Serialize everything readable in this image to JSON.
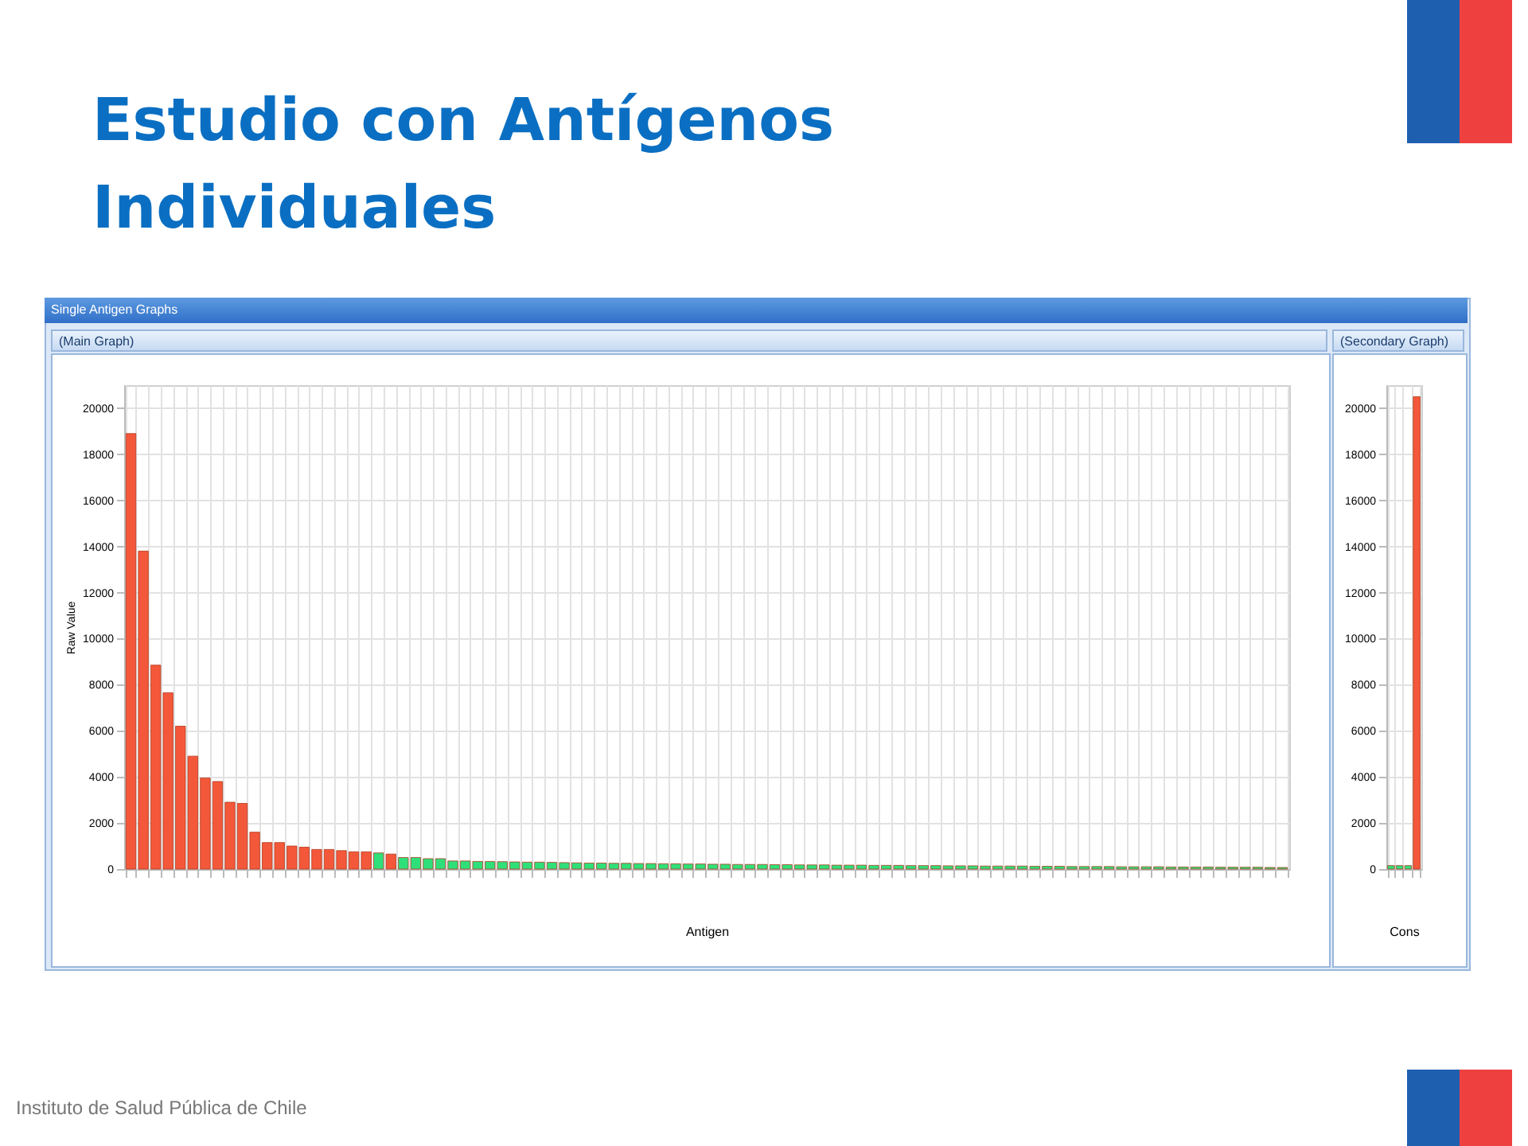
{
  "chart_data": [
    {
      "type": "bar",
      "title": "Estudio con Antígenos Individuales",
      "subtitle": "(Main Graph)",
      "annotations": [
        "Single Antigen Graphs",
        "Instituto de Salud Pública de Chile"
      ],
      "xlabel": "Antigen",
      "ylabel": "Raw Value",
      "categories": [
        null,
        null,
        null,
        null,
        null,
        null,
        null,
        null,
        null,
        null,
        null,
        null,
        null,
        null,
        null,
        null,
        null,
        null,
        null,
        null,
        null,
        null,
        null,
        null,
        null,
        null,
        null,
        null,
        null,
        null,
        null,
        null,
        null,
        null,
        null,
        null,
        null,
        null,
        null,
        null,
        null,
        null,
        null,
        null,
        null,
        null,
        null,
        null,
        null,
        null,
        null,
        null,
        null,
        null,
        null,
        null,
        null,
        null,
        null,
        null,
        null,
        null,
        null,
        null,
        null,
        null,
        null,
        null,
        null,
        null,
        null,
        null,
        null,
        null,
        null,
        null,
        null,
        null,
        null,
        null,
        null,
        null,
        null,
        null,
        null,
        null,
        null,
        null,
        null,
        null,
        null,
        null,
        null,
        null
      ],
      "values": [
        18900,
        13800,
        8850,
        7650,
        6200,
        4900,
        3950,
        3800,
        2900,
        2850,
        1600,
        1150,
        1150,
        1000,
        950,
        850,
        850,
        800,
        750,
        750,
        700,
        650,
        500,
        500,
        450,
        450,
        350,
        350,
        330,
        330,
        320,
        310,
        300,
        300,
        290,
        280,
        270,
        260,
        260,
        250,
        250,
        240,
        240,
        230,
        230,
        220,
        220,
        210,
        210,
        200,
        200,
        200,
        190,
        190,
        180,
        180,
        180,
        170,
        170,
        170,
        160,
        160,
        160,
        150,
        150,
        150,
        140,
        140,
        140,
        130,
        130,
        130,
        130,
        120,
        120,
        120,
        110,
        110,
        110,
        110,
        100,
        100,
        100,
        100,
        90,
        90,
        90,
        90,
        80,
        80,
        80,
        80,
        70,
        70
      ],
      "colors": [
        "#f4583a",
        "#f4583a",
        "#f4583a",
        "#f4583a",
        "#f4583a",
        "#f4583a",
        "#f4583a",
        "#f4583a",
        "#f4583a",
        "#f4583a",
        "#f4583a",
        "#f4583a",
        "#f4583a",
        "#f4583a",
        "#f4583a",
        "#f4583a",
        "#f4583a",
        "#f4583a",
        "#f4583a",
        "#f4583a",
        "#2fe07a",
        "#f4583a",
        "#2fe07a",
        "#2fe07a",
        "#2fe07a",
        "#2fe07a",
        "#2fe07a",
        "#2fe07a",
        "#2fe07a",
        "#2fe07a",
        "#2fe07a",
        "#2fe07a",
        "#2fe07a",
        "#2fe07a",
        "#2fe07a",
        "#2fe07a",
        "#2fe07a",
        "#2fe07a",
        "#2fe07a",
        "#2fe07a",
        "#2fe07a",
        "#2fe07a",
        "#2fe07a",
        "#2fe07a",
        "#2fe07a",
        "#2fe07a",
        "#2fe07a",
        "#2fe07a",
        "#2fe07a",
        "#2fe07a",
        "#2fe07a",
        "#2fe07a",
        "#2fe07a",
        "#2fe07a",
        "#2fe07a",
        "#2fe07a",
        "#2fe07a",
        "#2fe07a",
        "#2fe07a",
        "#2fe07a",
        "#2fe07a",
        "#2fe07a",
        "#2fe07a",
        "#2fe07a",
        "#2fe07a",
        "#2fe07a",
        "#2fe07a",
        "#2fe07a",
        "#2fe07a",
        "#2fe07a",
        "#2fe07a",
        "#2fe07a",
        "#2fe07a",
        "#2fe07a",
        "#2fe07a",
        "#2fe07a",
        "#2fe07a",
        "#2fe07a",
        "#2fe07a",
        "#2fe07a",
        "#2fe07a",
        "#2fe07a",
        "#2fe07a",
        "#2fe07a",
        "#2fe07a",
        "#2fe07a",
        "#2fe07a",
        "#2fe07a",
        "#2fe07a",
        "#2fe07a",
        "#2fe07a",
        "#2fe07a",
        "#2fe07a",
        "#2fe07a"
      ],
      "ylim": [
        0,
        21000
      ],
      "yticks": [
        0,
        2000,
        4000,
        6000,
        8000,
        10000,
        12000,
        14000,
        16000,
        18000,
        20000
      ],
      "grid": true
    },
    {
      "type": "bar",
      "title": "(Secondary Graph)",
      "xlabel": "Cons",
      "categories": [
        null,
        null,
        null,
        null
      ],
      "values": [
        150,
        150,
        150,
        20500
      ],
      "colors": [
        "#2fe07a",
        "#2fe07a",
        "#2fe07a",
        "#f4583a"
      ],
      "ylim": [
        0,
        21000
      ],
      "yticks": [
        0,
        2000,
        4000,
        6000,
        8000,
        10000,
        12000,
        14000,
        16000,
        18000,
        20000
      ],
      "grid": true
    }
  ]
}
